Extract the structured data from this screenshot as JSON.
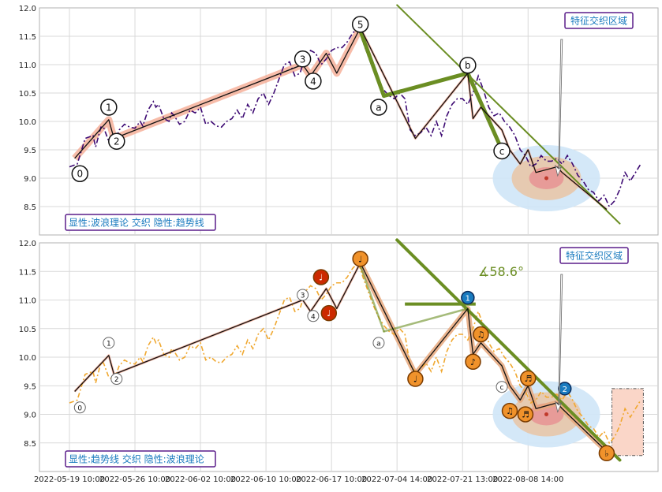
{
  "colors": {
    "grid": "#d9d9d9",
    "frame": "#b0b0b0",
    "price_top": "#3d0a73",
    "price_bottom": "#f0a830",
    "salmon_band": "#f4a58c",
    "green_trend": "#6b8e23",
    "wave_line": "#111111",
    "label_border": "#5a1d8a",
    "label_text": "#1a7bbf",
    "circle_outer": "#cfe6f7",
    "circle_mid": "#e8c6a8",
    "circle_inner": "#e79696",
    "red_node": "#cc2a00",
    "orange_node": "#f0922b",
    "blue_node": "#1a7bbf",
    "box_fill": "#fad6c8"
  },
  "chart_data": [
    {
      "type": "line",
      "panel": "top",
      "ylim": [
        8.0,
        12.0
      ],
      "yticks": [
        "12.0",
        "11.5",
        "11.0",
        "10.5",
        "10.0",
        "9.5",
        "9.0",
        "8.5"
      ],
      "annotation_box": "特征交织区域",
      "legend_box": "显性:波浪理论 交织 隐性:趋势线",
      "price": [
        [
          0,
          9.2
        ],
        [
          3,
          9.25
        ],
        [
          6,
          9.7
        ],
        [
          9,
          9.75
        ],
        [
          10,
          9.55
        ],
        [
          12,
          9.9
        ],
        [
          13,
          9.9
        ],
        [
          15,
          9.65
        ],
        [
          17,
          9.6
        ],
        [
          19,
          9.85
        ],
        [
          21,
          9.95
        ],
        [
          23,
          9.9
        ],
        [
          25,
          9.88
        ],
        [
          27,
          10.0
        ],
        [
          28,
          9.92
        ],
        [
          30,
          10.2
        ],
        [
          32,
          10.35
        ],
        [
          33,
          10.25
        ],
        [
          34,
          10.3
        ],
        [
          36,
          10.05
        ],
        [
          38,
          10.0
        ],
        [
          39,
          10.15
        ],
        [
          40,
          10.1
        ],
        [
          42,
          9.95
        ],
        [
          44,
          10.0
        ],
        [
          46,
          10.2
        ],
        [
          48,
          10.15
        ],
        [
          50,
          10.25
        ],
        [
          52,
          9.95
        ],
        [
          54,
          10.0
        ],
        [
          56,
          9.92
        ],
        [
          58,
          9.9
        ],
        [
          60,
          10.0
        ],
        [
          62,
          10.05
        ],
        [
          64,
          10.2
        ],
        [
          66,
          10.05
        ],
        [
          68,
          10.3
        ],
        [
          70,
          10.15
        ],
        [
          72,
          10.4
        ],
        [
          74,
          10.5
        ],
        [
          76,
          10.3
        ],
        [
          78,
          10.5
        ],
        [
          80,
          10.75
        ],
        [
          82,
          11.0
        ],
        [
          84,
          11.05
        ],
        [
          86,
          10.8
        ],
        [
          88,
          10.85
        ],
        [
          90,
          11.15
        ],
        [
          92,
          11.25
        ],
        [
          94,
          11.2
        ],
        [
          96,
          11.0
        ],
        [
          98,
          11.1
        ],
        [
          100,
          11.25
        ],
        [
          102,
          11.3
        ],
        [
          104,
          11.3
        ],
        [
          106,
          11.4
        ],
        [
          108,
          11.55
        ],
        [
          110,
          11.65
        ],
        [
          111,
          11.55
        ],
        [
          112,
          11.4
        ],
        [
          114,
          11.15
        ],
        [
          116,
          10.9
        ],
        [
          118,
          10.7
        ],
        [
          120,
          10.55
        ],
        [
          122,
          10.45
        ],
        [
          124,
          10.4
        ],
        [
          126,
          10.5
        ],
        [
          128,
          10.4
        ],
        [
          130,
          9.85
        ],
        [
          132,
          9.75
        ],
        [
          134,
          9.8
        ],
        [
          136,
          9.9
        ],
        [
          138,
          9.75
        ],
        [
          140,
          10.0
        ],
        [
          142,
          9.75
        ],
        [
          144,
          10.1
        ],
        [
          146,
          10.3
        ],
        [
          148,
          10.4
        ],
        [
          150,
          10.4
        ],
        [
          152,
          10.3
        ],
        [
          154,
          10.5
        ],
        [
          156,
          10.8
        ],
        [
          158,
          10.55
        ],
        [
          160,
          10.25
        ],
        [
          162,
          10.1
        ],
        [
          164,
          10.15
        ],
        [
          166,
          10.0
        ],
        [
          168,
          9.9
        ],
        [
          170,
          9.75
        ],
        [
          172,
          9.5
        ],
        [
          174,
          9.4
        ],
        [
          176,
          9.2
        ],
        [
          178,
          9.25
        ],
        [
          180,
          9.4
        ],
        [
          182,
          9.3
        ],
        [
          184,
          9.3
        ],
        [
          186,
          9.35
        ],
        [
          188,
          9.25
        ],
        [
          190,
          9.4
        ],
        [
          192,
          9.25
        ],
        [
          194,
          9.05
        ],
        [
          196,
          8.95
        ],
        [
          198,
          8.8
        ],
        [
          200,
          8.75
        ],
        [
          202,
          8.6
        ],
        [
          204,
          8.7
        ],
        [
          206,
          8.5
        ],
        [
          208,
          8.6
        ],
        [
          210,
          8.8
        ],
        [
          212,
          9.1
        ],
        [
          214,
          8.95
        ],
        [
          216,
          9.1
        ],
        [
          218,
          9.25
        ]
      ],
      "wave": [
        [
          2,
          9.35
        ],
        [
          15,
          10.03
        ],
        [
          17,
          9.7
        ],
        [
          89,
          11.0
        ],
        [
          92,
          10.8
        ],
        [
          98,
          11.2
        ],
        [
          102,
          10.85
        ],
        [
          111,
          11.65
        ],
        [
          132,
          9.7
        ],
        [
          152,
          10.85
        ],
        [
          154,
          10.05
        ],
        [
          157,
          10.25
        ],
        [
          165,
          9.85
        ],
        [
          168,
          9.5
        ],
        [
          172,
          9.25
        ],
        [
          175,
          9.5
        ],
        [
          178,
          9.1
        ],
        [
          186,
          9.2
        ],
        [
          188,
          9.1
        ],
        [
          205,
          8.45
        ]
      ],
      "wave_labels": [
        {
          "label": "0",
          "x": 4,
          "y": 9.08,
          "shape": "circle"
        },
        {
          "label": "1",
          "x": 15,
          "y": 10.25,
          "shape": "circle"
        },
        {
          "label": "2",
          "x": 18,
          "y": 9.65,
          "shape": "circle"
        },
        {
          "label": "3",
          "x": 89,
          "y": 11.1,
          "shape": "circle"
        },
        {
          "label": "4",
          "x": 93,
          "y": 10.71,
          "shape": "circle"
        },
        {
          "label": "5",
          "x": 111,
          "y": 11.71,
          "shape": "circle"
        },
        {
          "label": "a",
          "x": 118,
          "y": 10.25,
          "shape": "circle"
        },
        {
          "label": "b",
          "x": 152,
          "y": 10.99,
          "shape": "circle"
        },
        {
          "label": "c",
          "x": 165,
          "y": 9.48,
          "shape": "circle"
        }
      ],
      "trend_lines": [
        {
          "from": [
            111,
            11.6
          ],
          "to": [
            120,
            10.45
          ]
        },
        {
          "from": [
            120,
            10.45
          ],
          "to": [
            152,
            10.85
          ]
        },
        {
          "from": [
            152,
            10.85
          ],
          "to": [
            165,
            9.5
          ]
        },
        {
          "from": [
            125,
            12.05
          ],
          "to": [
            210,
            8.2
          ]
        }
      ],
      "focus": {
        "x": 182,
        "y": 9.0
      }
    },
    {
      "type": "line",
      "panel": "bottom",
      "ylim": [
        8.0,
        12.0
      ],
      "yticks": [
        "12.0",
        "11.5",
        "11.0",
        "10.5",
        "10.0",
        "9.5",
        "9.0",
        "8.5"
      ],
      "annotation_box": "特征交织区域",
      "legend_box": "显性:趋势线 交织 隐性:波浪理论",
      "angle_label": "∡58.6°",
      "price": [
        [
          0,
          9.2
        ],
        [
          3,
          9.25
        ],
        [
          6,
          9.7
        ],
        [
          9,
          9.75
        ],
        [
          10,
          9.55
        ],
        [
          12,
          9.9
        ],
        [
          13,
          9.9
        ],
        [
          15,
          9.65
        ],
        [
          17,
          9.6
        ],
        [
          19,
          9.85
        ],
        [
          21,
          9.95
        ],
        [
          23,
          9.9
        ],
        [
          25,
          9.88
        ],
        [
          27,
          10.0
        ],
        [
          28,
          9.92
        ],
        [
          30,
          10.2
        ],
        [
          32,
          10.35
        ],
        [
          33,
          10.25
        ],
        [
          34,
          10.3
        ],
        [
          36,
          10.05
        ],
        [
          38,
          10.0
        ],
        [
          39,
          10.15
        ],
        [
          40,
          10.1
        ],
        [
          42,
          9.95
        ],
        [
          44,
          10.0
        ],
        [
          46,
          10.2
        ],
        [
          48,
          10.15
        ],
        [
          50,
          10.25
        ],
        [
          52,
          9.95
        ],
        [
          54,
          10.0
        ],
        [
          56,
          9.92
        ],
        [
          58,
          9.9
        ],
        [
          60,
          10.0
        ],
        [
          62,
          10.05
        ],
        [
          64,
          10.2
        ],
        [
          66,
          10.05
        ],
        [
          68,
          10.3
        ],
        [
          70,
          10.15
        ],
        [
          72,
          10.4
        ],
        [
          74,
          10.5
        ],
        [
          76,
          10.3
        ],
        [
          78,
          10.5
        ],
        [
          80,
          10.75
        ],
        [
          82,
          11.0
        ],
        [
          84,
          11.05
        ],
        [
          86,
          10.8
        ],
        [
          88,
          10.85
        ],
        [
          90,
          11.15
        ],
        [
          92,
          11.25
        ],
        [
          94,
          11.2
        ],
        [
          96,
          11.0
        ],
        [
          98,
          11.1
        ],
        [
          100,
          11.25
        ],
        [
          102,
          11.3
        ],
        [
          104,
          11.3
        ],
        [
          106,
          11.4
        ],
        [
          108,
          11.55
        ],
        [
          110,
          11.65
        ],
        [
          111,
          11.55
        ],
        [
          112,
          11.4
        ],
        [
          114,
          11.15
        ],
        [
          116,
          10.9
        ],
        [
          118,
          10.7
        ],
        [
          120,
          10.55
        ],
        [
          122,
          10.45
        ],
        [
          124,
          10.4
        ],
        [
          126,
          10.5
        ],
        [
          128,
          10.4
        ],
        [
          130,
          9.85
        ],
        [
          132,
          9.75
        ],
        [
          134,
          9.8
        ],
        [
          136,
          9.9
        ],
        [
          138,
          9.75
        ],
        [
          140,
          10.0
        ],
        [
          142,
          9.75
        ],
        [
          144,
          10.1
        ],
        [
          146,
          10.3
        ],
        [
          148,
          10.4
        ],
        [
          150,
          10.4
        ],
        [
          152,
          10.3
        ],
        [
          154,
          10.5
        ],
        [
          156,
          10.8
        ],
        [
          158,
          10.55
        ],
        [
          160,
          10.25
        ],
        [
          162,
          10.1
        ],
        [
          164,
          10.15
        ],
        [
          166,
          10.0
        ],
        [
          168,
          9.9
        ],
        [
          170,
          9.75
        ],
        [
          172,
          9.5
        ],
        [
          174,
          9.4
        ],
        [
          176,
          9.2
        ],
        [
          178,
          9.25
        ],
        [
          180,
          9.4
        ],
        [
          182,
          9.3
        ],
        [
          184,
          9.3
        ],
        [
          186,
          9.35
        ],
        [
          188,
          9.25
        ],
        [
          190,
          9.4
        ],
        [
          192,
          9.25
        ],
        [
          194,
          9.05
        ],
        [
          196,
          8.95
        ],
        [
          198,
          8.8
        ],
        [
          200,
          8.75
        ],
        [
          202,
          8.6
        ],
        [
          204,
          8.7
        ],
        [
          206,
          8.5
        ],
        [
          208,
          8.6
        ],
        [
          210,
          8.8
        ],
        [
          212,
          9.1
        ],
        [
          214,
          8.95
        ],
        [
          216,
          9.1
        ],
        [
          218,
          9.25
        ]
      ],
      "wave": [
        [
          2,
          9.4
        ],
        [
          15,
          10.03
        ],
        [
          17,
          9.7
        ],
        [
          89,
          11.0
        ],
        [
          92,
          10.8
        ],
        [
          98,
          11.2
        ],
        [
          102,
          10.85
        ],
        [
          111,
          11.65
        ],
        [
          132,
          9.7
        ],
        [
          152,
          10.85
        ],
        [
          154,
          10.05
        ],
        [
          157,
          10.25
        ],
        [
          165,
          9.85
        ],
        [
          168,
          9.5
        ],
        [
          172,
          9.25
        ],
        [
          175,
          9.5
        ],
        [
          178,
          9.1
        ],
        [
          186,
          9.2
        ],
        [
          188,
          9.1
        ],
        [
          205,
          8.35
        ]
      ],
      "wave_labels": [
        {
          "label": "0",
          "x": 4,
          "y": 9.12,
          "shape": "circle"
        },
        {
          "label": "1",
          "x": 15,
          "y": 10.25,
          "shape": "circle"
        },
        {
          "label": "2",
          "x": 18,
          "y": 9.62,
          "shape": "circle"
        },
        {
          "label": "3",
          "x": 89,
          "y": 11.09,
          "shape": "circle"
        },
        {
          "label": "4",
          "x": 93,
          "y": 10.72,
          "shape": "circle"
        },
        {
          "label": "a",
          "x": 118,
          "y": 10.25,
          "shape": "circle"
        },
        {
          "label": "c",
          "x": 165,
          "y": 9.48,
          "shape": "circle"
        }
      ],
      "nodes": [
        {
          "x": 96,
          "y": 11.4,
          "kind": "red",
          "glyph": "♩"
        },
        {
          "x": 99,
          "y": 10.77,
          "kind": "red",
          "glyph": "♩"
        },
        {
          "x": 111,
          "y": 11.72,
          "kind": "orange",
          "glyph": "♩"
        },
        {
          "x": 132,
          "y": 9.62,
          "kind": "orange",
          "glyph": "♩"
        },
        {
          "x": 152,
          "y": 11.04,
          "kind": "blue",
          "glyph": "1"
        },
        {
          "x": 154,
          "y": 9.92,
          "kind": "orange",
          "glyph": "♪"
        },
        {
          "x": 157,
          "y": 10.4,
          "kind": "orange",
          "glyph": "♫"
        },
        {
          "x": 168,
          "y": 9.06,
          "kind": "orange",
          "glyph": "♫"
        },
        {
          "x": 175,
          "y": 9.63,
          "kind": "orange",
          "glyph": "♬"
        },
        {
          "x": 174,
          "y": 9.0,
          "kind": "orange",
          "glyph": "♬"
        },
        {
          "x": 189,
          "y": 9.45,
          "kind": "blue",
          "glyph": "2"
        },
        {
          "x": 205,
          "y": 8.32,
          "kind": "orange",
          "glyph": "♭"
        }
      ],
      "trend_lines": [
        {
          "from": [
            111,
            11.6
          ],
          "to": [
            120,
            10.45
          ],
          "style": "light"
        },
        {
          "from": [
            120,
            10.45
          ],
          "to": [
            152,
            10.85
          ],
          "style": "light"
        },
        {
          "from": [
            125,
            12.05
          ],
          "to": [
            210,
            8.2
          ],
          "style": "heavy"
        }
      ],
      "focus": {
        "x": 182,
        "y": 9.0
      }
    }
  ],
  "x_axis": {
    "tick_labels": [
      "2022-05-19 10:00",
      "2022-05-26 10:00",
      "2022-06-02 10:00",
      "2022-06-10 10:00",
      "2022-06-17 10:00",
      "2022-07-04 14:00",
      "2022-07-21 13:00",
      "2022-08-08 14:00"
    ],
    "tick_positions": [
      0,
      25,
      50,
      75,
      100,
      125,
      150,
      175
    ]
  }
}
